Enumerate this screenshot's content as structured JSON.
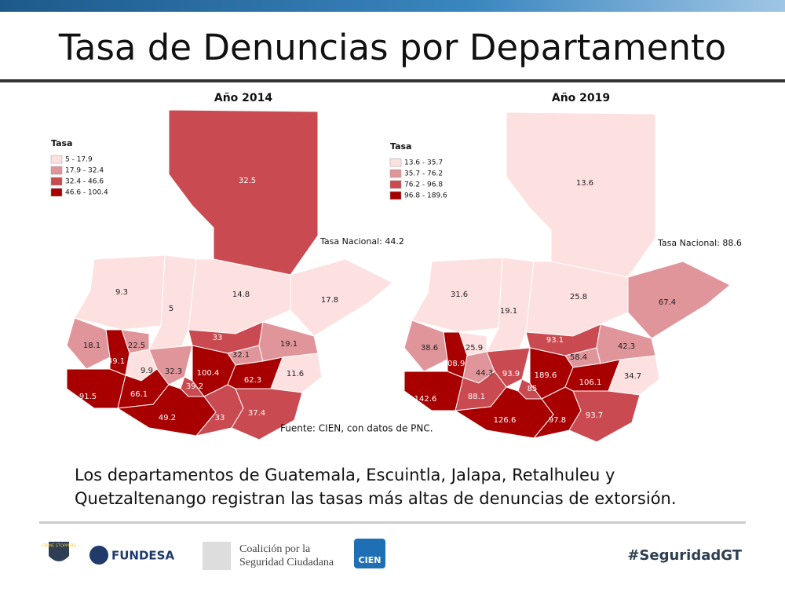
{
  "header": {
    "title": "Tasa de Denuncias por Departamento"
  },
  "maps": [
    {
      "title": "Año 2014",
      "legend": {
        "title": "Tasa",
        "items": [
          {
            "label": "5 - 17.9",
            "color": "#fde1e1"
          },
          {
            "label": "17.9 - 32.4",
            "color": "#e0959a"
          },
          {
            "label": "32.4 - 46.6",
            "color": "#c94a50"
          },
          {
            "label": "46.6 - 100.4",
            "color": "#a80000"
          }
        ]
      },
      "national": "Tasa Nacional: 44.2",
      "regions": [
        {
          "value": 32.5,
          "color": "#c94a50"
        },
        {
          "value": 9.3,
          "color": "#fde1e1"
        },
        {
          "value": 5,
          "color": "#fde1e1"
        },
        {
          "value": 14.8,
          "color": "#fde1e1"
        },
        {
          "value": 17.8,
          "color": "#fde1e1"
        },
        {
          "value": 18.1,
          "color": "#e0959a"
        },
        {
          "value": 22.5,
          "color": "#e0959a"
        },
        {
          "value": 49.1,
          "color": "#a80000"
        },
        {
          "value": 9.9,
          "color": "#fde1e1"
        },
        {
          "value": 33,
          "color": "#c94a50"
        },
        {
          "value": 32.1,
          "color": "#e0959a"
        },
        {
          "value": 19.1,
          "color": "#e0959a"
        },
        {
          "value": 32.3,
          "color": "#e0959a"
        },
        {
          "value": 100.4,
          "color": "#a80000"
        },
        {
          "value": 39.2,
          "color": "#c94a50"
        },
        {
          "value": 62.3,
          "color": "#a80000"
        },
        {
          "value": 11.6,
          "color": "#fde1e1"
        },
        {
          "value": 91.5,
          "color": "#a80000"
        },
        {
          "value": 66.1,
          "color": "#a80000"
        },
        {
          "value": 49.2,
          "color": "#a80000"
        },
        {
          "value": 33,
          "color": "#c94a50"
        },
        {
          "value": 37.4,
          "color": "#c94a50"
        }
      ]
    },
    {
      "title": "Año 2019",
      "legend": {
        "title": "Tasa",
        "items": [
          {
            "label": "13.6 - 35.7",
            "color": "#fde1e1"
          },
          {
            "label": "35.7 - 76.2",
            "color": "#e0959a"
          },
          {
            "label": "76.2 - 96.8",
            "color": "#c94a50"
          },
          {
            "label": "96.8 - 189.6",
            "color": "#a80000"
          }
        ]
      },
      "national": "Tasa Nacional: 88.6",
      "regions": [
        {
          "value": 13.6,
          "color": "#fde1e1"
        },
        {
          "value": 31.6,
          "color": "#fde1e1"
        },
        {
          "value": 19.1,
          "color": "#fde1e1"
        },
        {
          "value": 25.8,
          "color": "#fde1e1"
        },
        {
          "value": 67.4,
          "color": "#e0959a"
        },
        {
          "value": 38.6,
          "color": "#e0959a"
        },
        {
          "value": 25.9,
          "color": "#fde1e1"
        },
        {
          "value": 108.9,
          "color": "#a80000"
        },
        {
          "value": 44.3,
          "color": "#e0959a"
        },
        {
          "value": 93.1,
          "color": "#c94a50"
        },
        {
          "value": 58.4,
          "color": "#e0959a"
        },
        {
          "value": 42.3,
          "color": "#e0959a"
        },
        {
          "value": 93.9,
          "color": "#c94a50"
        },
        {
          "value": 189.6,
          "color": "#a80000"
        },
        {
          "value": 85,
          "color": "#c94a50"
        },
        {
          "value": 106.1,
          "color": "#a80000"
        },
        {
          "value": 34.7,
          "color": "#fde1e1"
        },
        {
          "value": 142.6,
          "color": "#a80000"
        },
        {
          "value": 88.1,
          "color": "#c94a50"
        },
        {
          "value": 126.6,
          "color": "#a80000"
        },
        {
          "value": 97.8,
          "color": "#a80000"
        },
        {
          "value": 93.7,
          "color": "#c94a50"
        }
      ]
    }
  ],
  "source": "Fuente: CIEN, con datos de PNC.",
  "caption": [
    "Los departamentos de Guatemala, Escuintla, Jalapa, Retalhuleu y",
    "Quetzaltenango registran las tasas más altas de denuncias de extorsión."
  ],
  "footer": {
    "crime_stoppers": "CRIME STOPPERS",
    "fundesa": "FUNDESA",
    "coalicion": [
      "Coalición por la",
      "Seguridad Ciudadana"
    ],
    "cien": "CIEN",
    "hashtag": "#SeguridadGT"
  }
}
